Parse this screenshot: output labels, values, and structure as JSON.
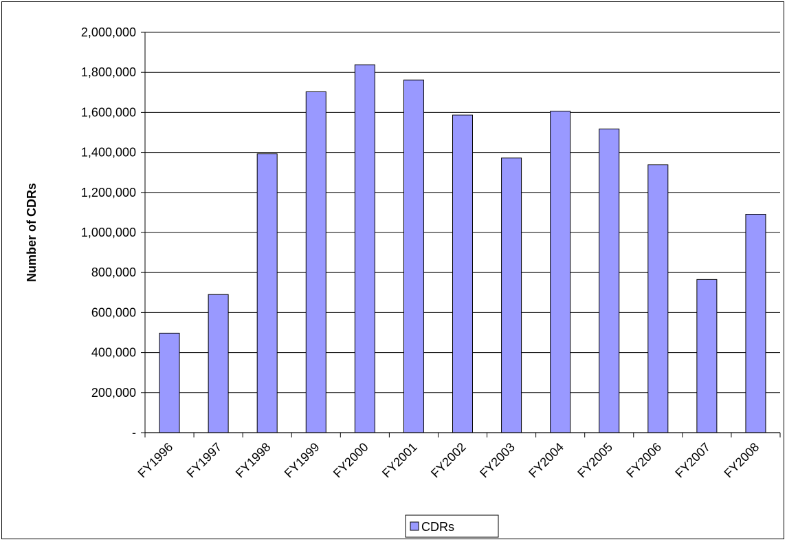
{
  "chart_data": {
    "type": "bar",
    "categories": [
      "FY1996",
      "FY1997",
      "FY1998",
      "FY1999",
      "FY2000",
      "FY2001",
      "FY2002",
      "FY2003",
      "FY2004",
      "FY2005",
      "FY2006",
      "FY2007",
      "FY2008"
    ],
    "series": [
      {
        "name": "CDRs",
        "color": "#9999ff",
        "values": [
          497000,
          690000,
          1393000,
          1703000,
          1838000,
          1762000,
          1587000,
          1372000,
          1606000,
          1517000,
          1338000,
          765000,
          1091000
        ]
      }
    ],
    "title": "",
    "xlabel": "",
    "ylabel": "Number of CDRs",
    "ylim": [
      0,
      2000000
    ],
    "yticks": [
      0,
      200000,
      400000,
      600000,
      800000,
      1000000,
      1200000,
      1400000,
      1600000,
      1800000,
      2000000
    ],
    "ytick_labels": [
      "-",
      "200,000",
      "400,000",
      "600,000",
      "800,000",
      "1,000,000",
      "1,200,000",
      "1,400,000",
      "1,600,000",
      "1,800,000",
      "2,000,000"
    ],
    "grid": true,
    "legend_position": "bottom-center"
  }
}
